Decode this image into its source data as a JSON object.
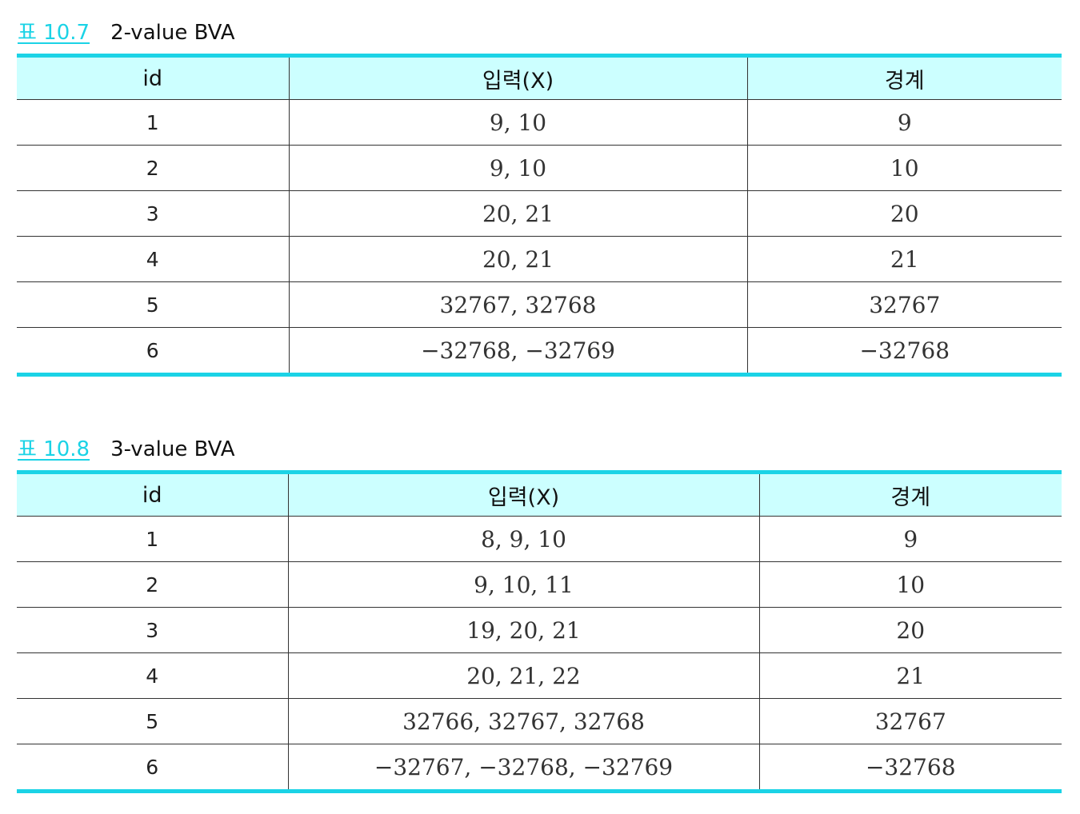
{
  "tables": [
    {
      "number": "표 10.7",
      "title": "2-value BVA",
      "headers": [
        "id",
        "입력(X)",
        "경계"
      ],
      "rows": [
        [
          "1",
          "9, 10",
          "9"
        ],
        [
          "2",
          "9, 10",
          "10"
        ],
        [
          "3",
          "20, 21",
          "20"
        ],
        [
          "4",
          "20, 21",
          "21"
        ],
        [
          "5",
          "32767, 32768",
          "32767"
        ],
        [
          "6",
          "−32768, −32769",
          "−32768"
        ]
      ]
    },
    {
      "number": "표 10.8",
      "title": "3-value BVA",
      "headers": [
        "id",
        "입력(X)",
        "경계"
      ],
      "rows": [
        [
          "1",
          "8, 9, 10",
          "9"
        ],
        [
          "2",
          "9, 10, 11",
          "10"
        ],
        [
          "3",
          "19, 20, 21",
          "20"
        ],
        [
          "4",
          "20, 21, 22",
          "21"
        ],
        [
          "5",
          "32766, 32767, 32768",
          "32767"
        ],
        [
          "6",
          "−32767, −32768, −32769",
          "−32768"
        ]
      ]
    }
  ],
  "colors": {
    "accent": "#1bd3e6",
    "header_bg": "#ccffff",
    "rule": "#333333"
  }
}
